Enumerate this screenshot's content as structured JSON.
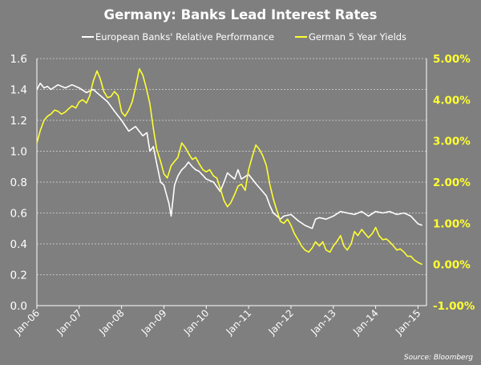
{
  "chart_data": {
    "type": "line",
    "title": "Germany: Banks Lead Interest Rates",
    "source": "Source: Bloomberg",
    "legend_position": "top",
    "grid": true,
    "x_tick_labels": [
      "Jan-06",
      "Jan-07",
      "Jan-08",
      "Jan-09",
      "Jan-10",
      "Jan-11",
      "Jan-12",
      "Jan-13",
      "Jan-14",
      "Jan-15"
    ],
    "x_range": [
      2006.0,
      2015.2
    ],
    "y_left": {
      "range": [
        0.0,
        1.6
      ],
      "ticks": [
        "0.0",
        "0.2",
        "0.4",
        "0.6",
        "0.8",
        "1.0",
        "1.2",
        "1.4",
        "1.6"
      ]
    },
    "y_right": {
      "range": [
        -1.0,
        5.0
      ],
      "ticks": [
        "-1.00%",
        "0.00%",
        "1.00%",
        "2.00%",
        "3.00%",
        "4.00%",
        "5.00%"
      ],
      "color": "#ffff33"
    },
    "series": [
      {
        "name": "European Banks' Relative Performance",
        "axis": "left",
        "color": "#ffffff",
        "x": [
          2006.0,
          2006.08,
          2006.17,
          2006.25,
          2006.33,
          2006.5,
          2006.67,
          2006.83,
          2007.0,
          2007.17,
          2007.33,
          2007.5,
          2007.67,
          2007.83,
          2008.0,
          2008.17,
          2008.33,
          2008.5,
          2008.6,
          2008.67,
          2008.75,
          2008.83,
          2008.92,
          2009.0,
          2009.08,
          2009.12,
          2009.17,
          2009.25,
          2009.33,
          2009.42,
          2009.5,
          2009.58,
          2009.67,
          2009.75,
          2009.83,
          2010.0,
          2010.17,
          2010.33,
          2010.42,
          2010.5,
          2010.58,
          2010.67,
          2010.75,
          2010.83,
          2011.0,
          2011.17,
          2011.33,
          2011.42,
          2011.5,
          2011.58,
          2011.67,
          2011.75,
          2011.83,
          2012.0,
          2012.17,
          2012.33,
          2012.5,
          2012.58,
          2012.67,
          2012.83,
          2013.0,
          2013.17,
          2013.33,
          2013.5,
          2013.67,
          2013.83,
          2014.0,
          2014.17,
          2014.33,
          2014.5,
          2014.67,
          2014.83,
          2015.0,
          2015.1
        ],
        "y": [
          1.4,
          1.44,
          1.41,
          1.42,
          1.4,
          1.43,
          1.41,
          1.43,
          1.41,
          1.38,
          1.4,
          1.36,
          1.32,
          1.26,
          1.2,
          1.13,
          1.16,
          1.1,
          1.12,
          1.0,
          1.03,
          0.92,
          0.8,
          0.78,
          0.7,
          0.66,
          0.58,
          0.78,
          0.84,
          0.88,
          0.9,
          0.93,
          0.9,
          0.88,
          0.87,
          0.82,
          0.8,
          0.74,
          0.8,
          0.86,
          0.84,
          0.82,
          0.88,
          0.82,
          0.85,
          0.79,
          0.74,
          0.71,
          0.65,
          0.6,
          0.58,
          0.56,
          0.58,
          0.59,
          0.55,
          0.52,
          0.5,
          0.56,
          0.57,
          0.56,
          0.58,
          0.61,
          0.6,
          0.59,
          0.61,
          0.58,
          0.61,
          0.6,
          0.61,
          0.59,
          0.6,
          0.58,
          0.53,
          0.52
        ]
      },
      {
        "name": "German 5 Year Yields",
        "axis": "right",
        "color": "#ffff33",
        "x": [
          2006.0,
          2006.08,
          2006.17,
          2006.25,
          2006.33,
          2006.42,
          2006.5,
          2006.58,
          2006.67,
          2006.75,
          2006.83,
          2006.92,
          2007.0,
          2007.08,
          2007.17,
          2007.25,
          2007.33,
          2007.42,
          2007.5,
          2007.58,
          2007.67,
          2007.75,
          2007.83,
          2007.92,
          2008.0,
          2008.08,
          2008.17,
          2008.25,
          2008.33,
          2008.42,
          2008.5,
          2008.58,
          2008.67,
          2008.75,
          2008.83,
          2008.92,
          2009.0,
          2009.08,
          2009.17,
          2009.25,
          2009.33,
          2009.42,
          2009.5,
          2009.58,
          2009.67,
          2009.75,
          2009.83,
          2009.92,
          2010.0,
          2010.08,
          2010.17,
          2010.25,
          2010.33,
          2010.42,
          2010.5,
          2010.58,
          2010.67,
          2010.75,
          2010.83,
          2010.92,
          2011.0,
          2011.08,
          2011.17,
          2011.25,
          2011.33,
          2011.42,
          2011.5,
          2011.58,
          2011.67,
          2011.75,
          2011.83,
          2011.92,
          2012.0,
          2012.08,
          2012.17,
          2012.25,
          2012.33,
          2012.42,
          2012.5,
          2012.58,
          2012.67,
          2012.75,
          2012.83,
          2012.92,
          2013.0,
          2013.08,
          2013.17,
          2013.25,
          2013.33,
          2013.42,
          2013.5,
          2013.58,
          2013.67,
          2013.75,
          2013.83,
          2013.92,
          2014.0,
          2014.08,
          2014.17,
          2014.25,
          2014.33,
          2014.42,
          2014.5,
          2014.58,
          2014.67,
          2014.75,
          2014.83,
          2014.92,
          2015.0,
          2015.1
        ],
        "y": [
          2.95,
          3.25,
          3.5,
          3.6,
          3.65,
          3.75,
          3.72,
          3.65,
          3.7,
          3.78,
          3.85,
          3.8,
          3.95,
          4.0,
          3.92,
          4.1,
          4.45,
          4.7,
          4.5,
          4.2,
          4.05,
          4.08,
          4.2,
          4.1,
          3.7,
          3.6,
          3.75,
          3.95,
          4.3,
          4.75,
          4.6,
          4.3,
          3.9,
          3.3,
          2.8,
          2.5,
          2.2,
          2.1,
          2.4,
          2.5,
          2.6,
          2.95,
          2.85,
          2.7,
          2.55,
          2.6,
          2.45,
          2.3,
          2.25,
          2.3,
          2.15,
          2.1,
          1.85,
          1.55,
          1.4,
          1.5,
          1.7,
          1.9,
          1.95,
          1.8,
          2.3,
          2.6,
          2.9,
          2.8,
          2.65,
          2.4,
          1.95,
          1.6,
          1.3,
          1.05,
          1.0,
          1.1,
          0.95,
          0.75,
          0.6,
          0.45,
          0.35,
          0.3,
          0.4,
          0.55,
          0.45,
          0.55,
          0.35,
          0.3,
          0.45,
          0.55,
          0.7,
          0.45,
          0.35,
          0.5,
          0.8,
          0.7,
          0.85,
          0.75,
          0.65,
          0.75,
          0.9,
          0.7,
          0.6,
          0.62,
          0.55,
          0.45,
          0.35,
          0.38,
          0.3,
          0.2,
          0.2,
          0.1,
          0.05,
          0.0
        ]
      }
    ]
  }
}
